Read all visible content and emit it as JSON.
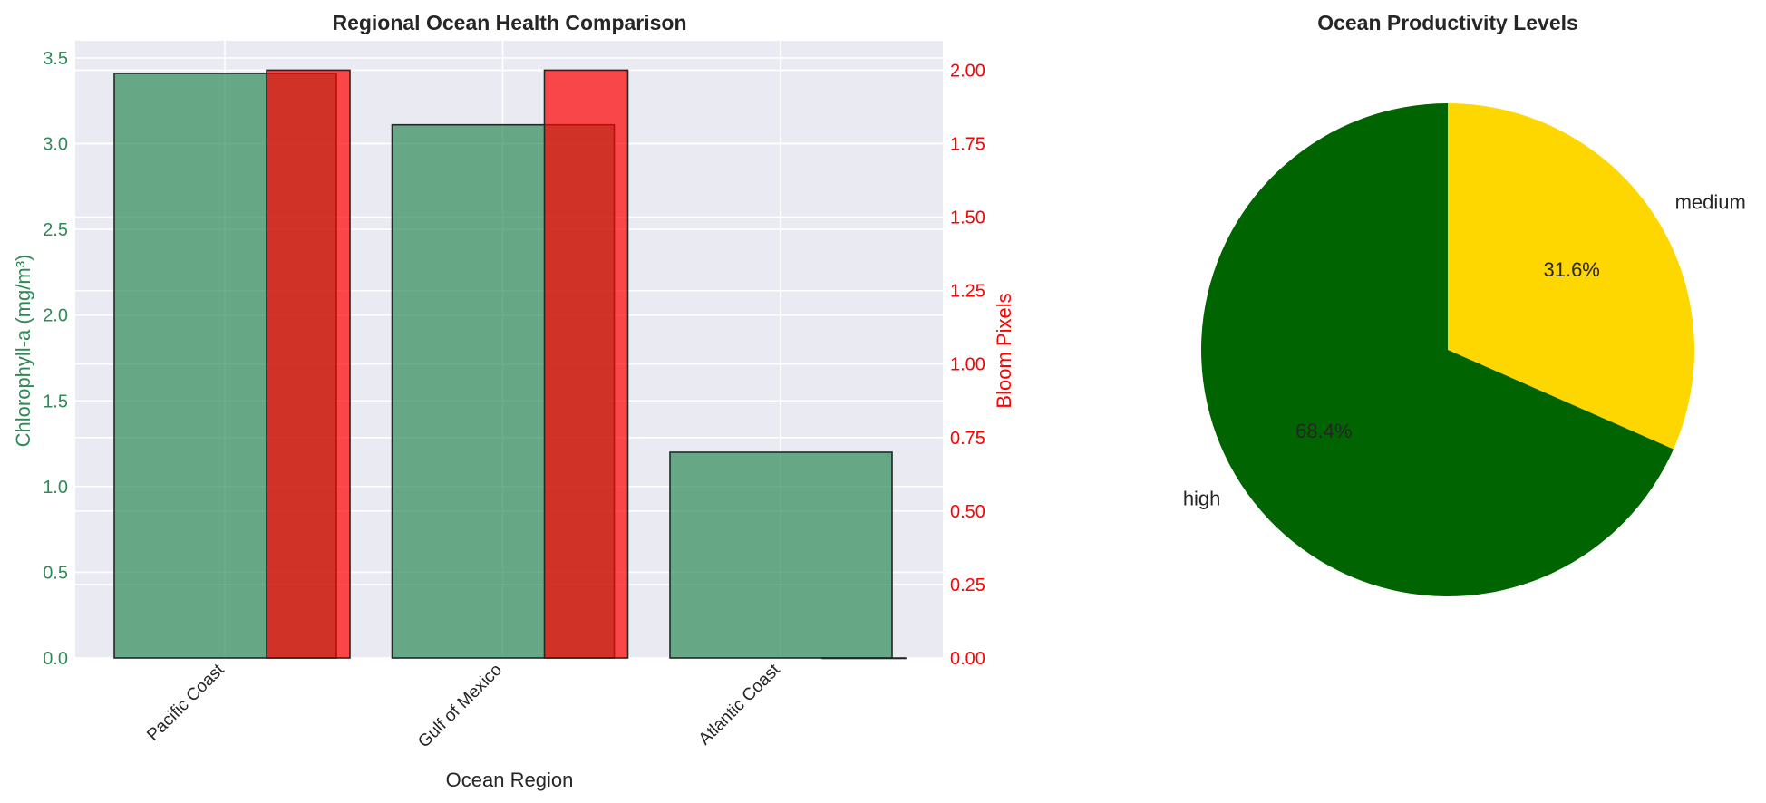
{
  "chart_data": [
    {
      "type": "bar",
      "title": "Regional Ocean Health Comparison",
      "xlabel": "Ocean Region",
      "categories": [
        "Pacific Coast",
        "Gulf of Mexico",
        "Atlantic Coast"
      ],
      "y_left": {
        "label": "Chlorophyll-a (mg/m³)",
        "ylim": [
          0,
          3.6
        ],
        "ticks": [
          "0.0",
          "0.5",
          "1.0",
          "1.5",
          "2.0",
          "2.5",
          "3.0",
          "3.5"
        ],
        "color": "#2e8b57"
      },
      "y_right": {
        "label": "Bloom Pixels",
        "ylim": [
          0,
          2.1
        ],
        "ticks": [
          "0.00",
          "0.25",
          "0.50",
          "0.75",
          "1.00",
          "1.25",
          "1.50",
          "1.75",
          "2.00"
        ],
        "color": "#ff0000"
      },
      "series": [
        {
          "name": "Chlorophyll-a",
          "axis": "left",
          "values": [
            3.41,
            3.11,
            1.2
          ],
          "color": "#2e8b57"
        },
        {
          "name": "Bloom Pixels",
          "axis": "right",
          "values": [
            2,
            2,
            0
          ],
          "color": "#ff0000"
        }
      ],
      "grid": true
    },
    {
      "type": "pie",
      "title": "Ocean Productivity Levels",
      "labels": [
        "medium",
        "high"
      ],
      "values": [
        31.6,
        68.4
      ],
      "percent_labels": [
        "31.6%",
        "68.4%"
      ],
      "colors": [
        "#ffd700",
        "#006400"
      ],
      "start_angle_deg": 90,
      "direction": "clockwise"
    }
  ]
}
